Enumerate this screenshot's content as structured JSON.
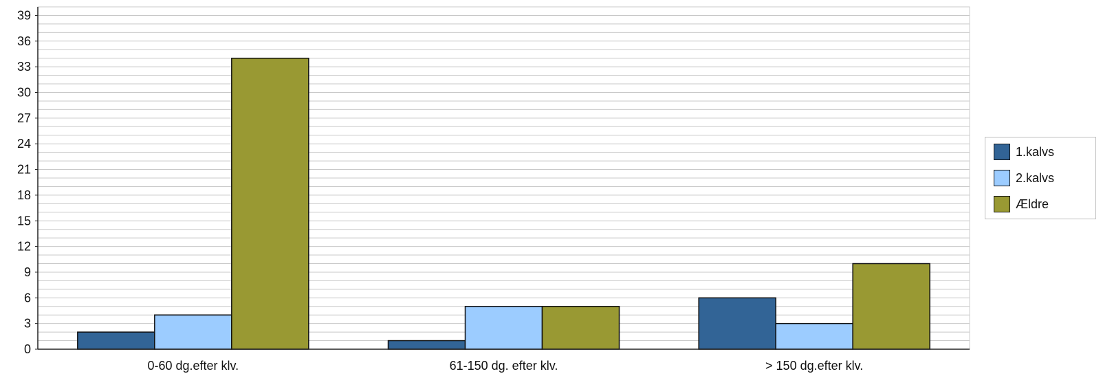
{
  "chart_data": {
    "type": "bar",
    "categories": [
      "0-60 dg.efter klv.",
      "61-150 dg. efter klv.",
      "> 150 dg.efter klv."
    ],
    "series": [
      {
        "name": "1.kalvs",
        "color": "#326496",
        "values": [
          2,
          1,
          6
        ]
      },
      {
        "name": "2.kalvs",
        "color": "#9cccff",
        "values": [
          4,
          5,
          3
        ]
      },
      {
        "name": "Ældre",
        "color": "#999933",
        "values": [
          34,
          5,
          10
        ]
      }
    ],
    "yticks": [
      0,
      3,
      6,
      9,
      12,
      15,
      18,
      21,
      24,
      27,
      30,
      33,
      36,
      39
    ],
    "ylim": [
      0,
      40
    ],
    "grid": true,
    "grid_minor_step": 1,
    "legend_position": "right"
  }
}
